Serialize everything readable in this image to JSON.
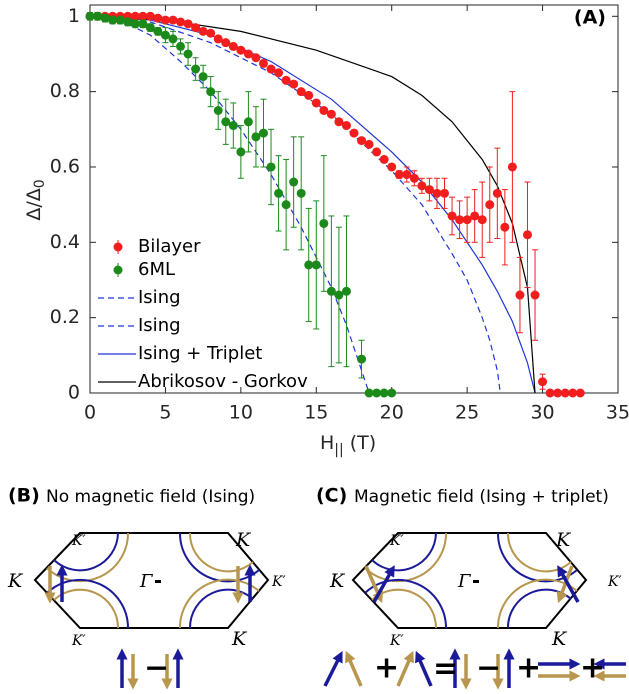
{
  "chart_data": {
    "type": "scatter",
    "panel_label": "(A)",
    "y_label": "Δ/Δ",
    "y_label_sub": "0",
    "x_label": "H",
    "x_label_sub": "||",
    "x_label_unit": "(T)",
    "xlim": [
      0,
      35
    ],
    "ylim": [
      0,
      1.03
    ],
    "xticks": [
      0,
      5,
      10,
      15,
      20,
      25,
      30,
      35
    ],
    "yticks": [
      0,
      0.2,
      0.4,
      0.6,
      0.8,
      1
    ],
    "series": [
      {
        "name": "Bilayer",
        "style": "errorbar",
        "dashed": false,
        "color": "#f21d1d",
        "x": [
          0,
          0.5,
          1,
          1.5,
          2,
          2.5,
          3,
          3.5,
          4,
          4.5,
          5,
          5.5,
          6,
          6.5,
          7,
          7.5,
          8,
          8.5,
          9,
          9.5,
          10,
          10.5,
          11,
          11.5,
          12,
          12.5,
          13,
          13.5,
          14,
          14.5,
          15,
          15.5,
          16,
          16.5,
          17,
          17.5,
          18,
          18.5,
          19,
          19.5,
          20,
          20.5,
          21,
          21.5,
          22,
          22.5,
          23,
          23.5,
          24,
          24.5,
          25,
          25.5,
          26,
          26.5,
          27,
          27.5,
          28,
          28.5,
          29,
          29.5,
          30,
          30.5,
          31,
          31.5,
          32,
          32.5
        ],
        "values": [
          1,
          1,
          1,
          1,
          1,
          1,
          1,
          1,
          1,
          0.995,
          0.99,
          0.99,
          0.985,
          0.98,
          0.97,
          0.96,
          0.955,
          0.94,
          0.93,
          0.92,
          0.91,
          0.9,
          0.89,
          0.875,
          0.86,
          0.85,
          0.83,
          0.82,
          0.8,
          0.79,
          0.77,
          0.75,
          0.74,
          0.72,
          0.71,
          0.69,
          0.67,
          0.66,
          0.64,
          0.62,
          0.6,
          0.58,
          0.58,
          0.57,
          0.55,
          0.54,
          0.53,
          0.53,
          0.47,
          0.46,
          0.46,
          0.47,
          0.46,
          0.5,
          0.53,
          0.44,
          0.6,
          0.26,
          0.42,
          0.26,
          0.03,
          0,
          0,
          0,
          0,
          0
        ],
        "errors": [
          0,
          0,
          0,
          0,
          0,
          0,
          0,
          0,
          0,
          0,
          0,
          0,
          0,
          0,
          0,
          0,
          0,
          0,
          0,
          0,
          0,
          0,
          0,
          0,
          0,
          0,
          0,
          0,
          0,
          0,
          0,
          0,
          0,
          0,
          0,
          0,
          0,
          0,
          0,
          0,
          0,
          0.01,
          0.02,
          0.02,
          0.02,
          0.03,
          0.04,
          0.04,
          0.05,
          0.05,
          0.06,
          0.07,
          0.1,
          0.1,
          0.12,
          0.1,
          0.2,
          0.1,
          0.14,
          0.12,
          0.02,
          0,
          0,
          0,
          0,
          0
        ]
      },
      {
        "name": "6ML",
        "style": "errorbar",
        "dashed": false,
        "color": "#1b8a1b",
        "x": [
          0,
          0.5,
          1,
          1.5,
          2,
          2.5,
          3,
          3.5,
          4,
          4.5,
          5,
          5.5,
          6,
          6.5,
          7,
          7.5,
          8,
          8.5,
          9,
          9.5,
          10,
          10.5,
          11,
          11.5,
          12,
          12.5,
          13,
          13.5,
          14,
          14.5,
          15,
          15.5,
          16,
          16.5,
          17,
          18,
          18.5,
          19,
          19.5,
          20
        ],
        "values": [
          1,
          1,
          0.995,
          0.99,
          0.99,
          0.985,
          0.98,
          0.98,
          0.97,
          0.96,
          0.95,
          0.94,
          0.92,
          0.9,
          0.86,
          0.84,
          0.8,
          0.75,
          0.72,
          0.71,
          0.64,
          0.72,
          0.68,
          0.69,
          0.6,
          0.53,
          0.5,
          0.56,
          0.53,
          0.34,
          0.34,
          0.45,
          0.27,
          0.26,
          0.27,
          0.09,
          0,
          0,
          0,
          0
        ],
        "errors": [
          0.01,
          0.01,
          0.01,
          0.01,
          0.01,
          0.01,
          0.01,
          0.01,
          0.01,
          0.01,
          0.02,
          0.02,
          0.02,
          0.03,
          0.03,
          0.03,
          0.04,
          0.05,
          0.06,
          0.06,
          0.07,
          0.08,
          0.08,
          0.09,
          0.1,
          0.1,
          0.12,
          0.12,
          0.15,
          0.15,
          0.17,
          0.18,
          0.2,
          0.18,
          0.2,
          0.05,
          0,
          0,
          0,
          0
        ]
      },
      {
        "name": "Ising",
        "style": "line",
        "dashed": true,
        "color": "#1f35d6",
        "x": [
          0,
          2,
          4,
          6,
          8,
          10,
          12,
          14,
          16,
          17,
          18,
          18.5
        ],
        "values": [
          1,
          0.99,
          0.95,
          0.88,
          0.8,
          0.7,
          0.58,
          0.44,
          0.28,
          0.18,
          0.06,
          0
        ]
      },
      {
        "name": "Ising",
        "style": "line",
        "dashed": true,
        "color": "#1f35d6",
        "x": [
          0,
          4,
          8,
          12,
          16,
          20,
          22,
          24,
          25,
          26,
          26.5,
          27,
          27.2
        ],
        "values": [
          1,
          0.985,
          0.93,
          0.85,
          0.74,
          0.59,
          0.5,
          0.37,
          0.3,
          0.2,
          0.14,
          0.06,
          0
        ]
      },
      {
        "name": "Ising + Triplet",
        "style": "line",
        "dashed": false,
        "color": "#1f35d6",
        "x": [
          0,
          4,
          8,
          12,
          16,
          20,
          22,
          24,
          26,
          27,
          28,
          29,
          29.5
        ],
        "values": [
          1,
          0.99,
          0.95,
          0.88,
          0.78,
          0.64,
          0.56,
          0.46,
          0.34,
          0.27,
          0.19,
          0.08,
          0
        ]
      },
      {
        "name": "Abrikosov - Gorkov",
        "style": "line",
        "dashed": false,
        "color": "#000000",
        "x": [
          0,
          5,
          10,
          15,
          20,
          22,
          24,
          26,
          27,
          28,
          29,
          29.5
        ],
        "values": [
          1,
          0.99,
          0.96,
          0.91,
          0.84,
          0.79,
          0.72,
          0.62,
          0.55,
          0.45,
          0.28,
          0
        ]
      }
    ]
  },
  "panels": [
    {
      "label": "(B)",
      "title": "No magnetic field (Ising)",
      "center": "Γ",
      "points": [
        "K′",
        "K",
        "K",
        "K′",
        "K′",
        "K"
      ],
      "equation": [
        "−"
      ]
    },
    {
      "label": "(C)",
      "title": "Magnetic field (Ising + triplet)",
      "center": "Γ",
      "points": [
        "K′",
        "K",
        "K",
        "K′",
        "K′",
        "K"
      ],
      "equation": [
        "+",
        "=",
        "−",
        "+",
        "+"
      ]
    }
  ]
}
